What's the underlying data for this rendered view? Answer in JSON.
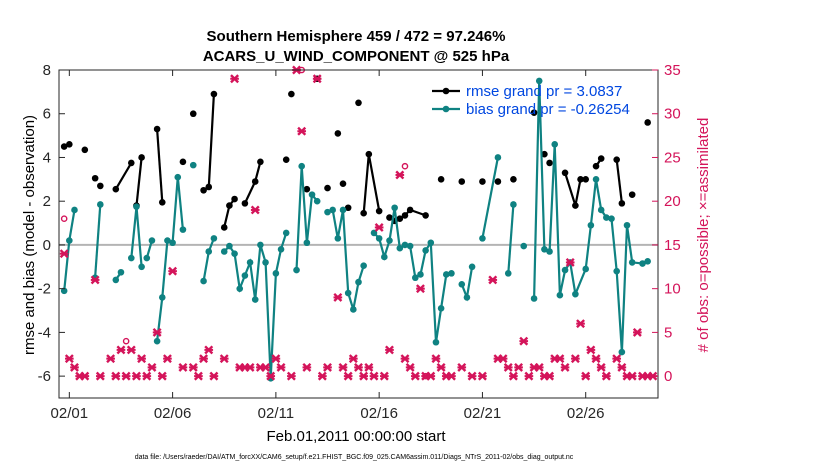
{
  "chart_data": {
    "type": "line",
    "title": "Southern Hemisphere 459 / 472 = 97.246%",
    "subtitle": "ACARS_U_WIND_COMPONENT @ 525 hPa",
    "xlabel": "Feb.01,2011 00:00:00 start",
    "ylabel": "rmse and bias (model - observation)",
    "y2label": "# of obs: o=possible; ×=assimilated",
    "footer": "data file: /Users/raeder/DAI/ATM_forcXX/CAM6_setup/f.e21.FHIST_BGC.f09_025.CAM6assim.011/Diags_NTrS_2011-02/obs_diag_output.nc",
    "xlim": [
      0.5,
      29.5
    ],
    "ylim": [
      -7,
      8
    ],
    "y2lim": [
      -2.5,
      35
    ],
    "x_ticks": [
      {
        "x": 1,
        "label": "02/01"
      },
      {
        "x": 6,
        "label": "02/06"
      },
      {
        "x": 11,
        "label": "02/11"
      },
      {
        "x": 16,
        "label": "02/16"
      },
      {
        "x": 21,
        "label": "02/21"
      },
      {
        "x": 26,
        "label": "02/26"
      }
    ],
    "y_ticks": [
      "-6",
      "-4",
      "-2",
      "0",
      "2",
      "4",
      "6",
      "8"
    ],
    "y2_ticks": [
      "0",
      "5",
      "10",
      "15",
      "20",
      "25",
      "30",
      "35"
    ],
    "colors": {
      "rmse": "#000000",
      "bias": "#0f8282",
      "obs": "#d4145a",
      "zero_line": "#b4b4b4"
    },
    "grid": false,
    "legend_position": "top-right",
    "legend": [
      {
        "name": "rmse grand pr = 3.0837",
        "color": "#0047e0"
      },
      {
        "name": "bias grand pr = -0.26254",
        "color": "#0047e0"
      }
    ],
    "series": [
      {
        "key": "rmse",
        "points": [
          [
            0.75,
            4.5
          ],
          [
            1,
            4.6
          ],
          [
            1.75,
            4.35
          ],
          [
            2.25,
            3.05
          ],
          [
            2.5,
            2.7
          ],
          [
            3.25,
            2.55
          ],
          [
            4,
            3.75
          ],
          [
            4.25,
            1.8
          ],
          [
            4.5,
            4.0
          ],
          [
            5.25,
            5.3
          ],
          [
            5.5,
            1.95
          ],
          [
            6.5,
            3.8
          ],
          [
            7,
            6.0
          ],
          [
            7.5,
            2.5
          ],
          [
            7.75,
            2.65
          ],
          [
            8,
            6.9
          ],
          [
            8.5,
            0.8
          ],
          [
            8.75,
            1.8
          ],
          [
            9,
            2.1
          ],
          [
            9.5,
            1.9
          ],
          [
            10,
            2.9
          ],
          [
            10.25,
            3.8
          ],
          [
            11.5,
            3.9
          ],
          [
            11.75,
            6.9
          ],
          [
            12.5,
            2.55
          ],
          [
            13,
            7.6
          ],
          [
            13.5,
            2.6
          ],
          [
            14,
            5.1
          ],
          [
            14.25,
            2.8
          ],
          [
            14.5,
            1.7
          ],
          [
            15,
            6.5
          ],
          [
            15.25,
            1.45
          ],
          [
            15.5,
            4.15
          ],
          [
            16,
            1.55
          ],
          [
            16.5,
            1.25
          ],
          [
            16.75,
            1.1
          ],
          [
            17,
            1.2
          ],
          [
            17.25,
            1.35
          ],
          [
            17.5,
            1.6
          ],
          [
            18.25,
            1.35
          ],
          [
            19,
            3.0
          ],
          [
            20,
            2.9
          ],
          [
            21,
            2.9
          ],
          [
            21.75,
            2.9
          ],
          [
            22.5,
            3.0
          ],
          [
            23.5,
            6.05
          ],
          [
            24,
            4.15
          ],
          [
            24.25,
            3.75
          ],
          [
            25,
            3.3
          ],
          [
            25.5,
            1.8
          ],
          [
            25.75,
            3.0
          ],
          [
            26,
            3.0
          ],
          [
            26.5,
            3.6
          ],
          [
            26.75,
            3.95
          ],
          [
            27.5,
            3.9
          ],
          [
            27.75,
            1.9
          ],
          [
            28.25,
            2.3
          ],
          [
            29,
            5.6
          ]
        ],
        "segments": [
          [
            0,
            1
          ],
          [
            5,
            6
          ],
          [
            7,
            8
          ],
          [
            9,
            10
          ],
          [
            13,
            14,
            15
          ],
          [
            16,
            17,
            18
          ],
          [
            19,
            20,
            21
          ],
          [
            31,
            32,
            33
          ],
          [
            36,
            37,
            38,
            39
          ],
          [
            48,
            49,
            50,
            51
          ],
          [
            52,
            53
          ],
          [
            54,
            55
          ]
        ]
      },
      {
        "key": "bias",
        "points": [
          [
            0.75,
            -2.1
          ],
          [
            1,
            0.2
          ],
          [
            1.25,
            1.6
          ],
          [
            2.25,
            -1.5
          ],
          [
            2.5,
            1.85
          ],
          [
            3.25,
            -1.6
          ],
          [
            3.5,
            -1.25
          ],
          [
            4,
            -0.6
          ],
          [
            4.25,
            1.75
          ],
          [
            4.5,
            -1.0
          ],
          [
            4.75,
            -0.6
          ],
          [
            5,
            0.2
          ],
          [
            5.25,
            -4.4
          ],
          [
            5.5,
            -2.4
          ],
          [
            5.75,
            0.2
          ],
          [
            6,
            0.1
          ],
          [
            6.25,
            3.1
          ],
          [
            6.5,
            0.7
          ],
          [
            7,
            3.65
          ],
          [
            7.5,
            -1.65
          ],
          [
            7.75,
            -0.3
          ],
          [
            8,
            0.3
          ],
          [
            8.5,
            -0.3
          ],
          [
            8.75,
            -0.05
          ],
          [
            9,
            -0.4
          ],
          [
            9.25,
            -2.0
          ],
          [
            9.5,
            -1.4
          ],
          [
            9.75,
            -0.8
          ],
          [
            10,
            -2.5
          ],
          [
            10.25,
            0.0
          ],
          [
            10.5,
            -0.8
          ],
          [
            10.75,
            -6.1
          ],
          [
            11,
            -1.3
          ],
          [
            11.25,
            -0.2
          ],
          [
            11.5,
            0.55
          ],
          [
            12,
            -1.15
          ],
          [
            12.25,
            3.6
          ],
          [
            12.5,
            0.1
          ],
          [
            12.75,
            2.3
          ],
          [
            13,
            2.0
          ],
          [
            13.5,
            1.5
          ],
          [
            13.75,
            1.6
          ],
          [
            14,
            0.3
          ],
          [
            14.25,
            1.6
          ],
          [
            14.5,
            -2.2
          ],
          [
            14.75,
            -2.95
          ],
          [
            15,
            -1.7
          ],
          [
            15.25,
            -0.95
          ],
          [
            15.75,
            0.55
          ],
          [
            16,
            0.3
          ],
          [
            16.25,
            -0.55
          ],
          [
            16.5,
            0.2
          ],
          [
            16.75,
            1.7
          ],
          [
            17,
            -0.15
          ],
          [
            17.25,
            0.0
          ],
          [
            17.5,
            -0.05
          ],
          [
            17.75,
            -1.5
          ],
          [
            18,
            -1.35
          ],
          [
            18.25,
            -0.25
          ],
          [
            18.5,
            0.1
          ],
          [
            18.75,
            -4.45
          ],
          [
            19,
            -2.9
          ],
          [
            19.25,
            -1.35
          ],
          [
            19.5,
            -1.3
          ],
          [
            20,
            -1.8
          ],
          [
            20.25,
            -2.4
          ],
          [
            20.5,
            -1.0
          ],
          [
            21,
            0.3
          ],
          [
            21.75,
            4.0
          ],
          [
            22.25,
            -1.3
          ],
          [
            22.5,
            1.85
          ],
          [
            23,
            -0.05
          ],
          [
            23.5,
            -2.45
          ],
          [
            23.75,
            7.5
          ],
          [
            24,
            -0.2
          ],
          [
            24.25,
            -0.3
          ],
          [
            24.5,
            4.6
          ],
          [
            24.75,
            -2.3
          ],
          [
            25,
            -1.15
          ],
          [
            25.25,
            -0.8
          ],
          [
            25.5,
            -2.25
          ],
          [
            26,
            -1.1
          ],
          [
            26.25,
            0.9
          ],
          [
            26.5,
            3.0
          ],
          [
            26.75,
            1.6
          ],
          [
            27,
            1.25
          ],
          [
            27.25,
            1.2
          ],
          [
            27.5,
            -1.2
          ],
          [
            27.75,
            -4.9
          ],
          [
            28,
            0.9
          ],
          [
            28.25,
            -0.8
          ],
          [
            28.75,
            -0.85
          ],
          [
            29,
            -0.75
          ]
        ],
        "segments": [
          [
            0,
            1,
            2
          ],
          [
            3,
            4
          ],
          [
            5,
            6
          ],
          [
            7,
            8,
            9
          ],
          [
            10,
            11
          ],
          [
            12,
            13,
            14,
            15,
            16,
            17
          ],
          [
            19,
            20,
            21
          ],
          [
            22,
            23,
            24,
            25,
            26,
            27,
            28,
            29,
            30,
            31,
            32,
            33,
            34
          ],
          [
            35,
            36,
            37,
            38,
            39
          ],
          [
            40,
            41,
            42,
            43,
            44,
            45,
            46,
            47
          ],
          [
            48,
            49,
            50,
            51,
            52,
            53,
            54,
            55,
            56,
            57,
            58,
            59,
            60,
            61,
            62,
            63
          ],
          [
            64,
            65,
            66
          ],
          [
            67,
            68
          ],
          [
            69,
            70
          ],
          [
            72,
            73,
            74,
            75,
            76,
            77,
            78,
            79,
            80,
            81,
            82,
            83,
            84,
            85,
            86,
            87,
            88,
            89,
            90,
            91,
            92
          ]
        ]
      }
    ],
    "obs_assimilated": [
      [
        0.75,
        14
      ],
      [
        1,
        2
      ],
      [
        1.25,
        1
      ],
      [
        1.5,
        0
      ],
      [
        1.75,
        0
      ],
      [
        2.25,
        11
      ],
      [
        2.5,
        0
      ],
      [
        3,
        2
      ],
      [
        3.25,
        0
      ],
      [
        3.5,
        3
      ],
      [
        3.75,
        0
      ],
      [
        4,
        3
      ],
      [
        4.25,
        0
      ],
      [
        4.5,
        2
      ],
      [
        4.75,
        0
      ],
      [
        5,
        1
      ],
      [
        5.25,
        5
      ],
      [
        5.5,
        0
      ],
      [
        5.75,
        2
      ],
      [
        6,
        12
      ],
      [
        6.5,
        1
      ],
      [
        7,
        1
      ],
      [
        7.25,
        0
      ],
      [
        7.5,
        2
      ],
      [
        7.75,
        3
      ],
      [
        8,
        0
      ],
      [
        8.5,
        2
      ],
      [
        9,
        34
      ],
      [
        9.25,
        1
      ],
      [
        9.5,
        1
      ],
      [
        9.75,
        1
      ],
      [
        10,
        19
      ],
      [
        10.25,
        1
      ],
      [
        10.5,
        1
      ],
      [
        10.75,
        0
      ],
      [
        11,
        2
      ],
      [
        11.25,
        1
      ],
      [
        11.75,
        0
      ],
      [
        12,
        35
      ],
      [
        12.25,
        28
      ],
      [
        12.5,
        1
      ],
      [
        13,
        34
      ],
      [
        13.25,
        0
      ],
      [
        13.5,
        1
      ],
      [
        14,
        9
      ],
      [
        14.25,
        1
      ],
      [
        14.5,
        0
      ],
      [
        14.75,
        2
      ],
      [
        15,
        1
      ],
      [
        15.25,
        0
      ],
      [
        15.5,
        1
      ],
      [
        15.75,
        0
      ],
      [
        16,
        17
      ],
      [
        16.25,
        0
      ],
      [
        16.5,
        3
      ],
      [
        17,
        23
      ],
      [
        17.25,
        2
      ],
      [
        17.5,
        1
      ],
      [
        17.75,
        0
      ],
      [
        18,
        10
      ],
      [
        18.25,
        0
      ],
      [
        18.5,
        0
      ],
      [
        18.75,
        2
      ],
      [
        19,
        1
      ],
      [
        19.25,
        0
      ],
      [
        19.5,
        0
      ],
      [
        20,
        1
      ],
      [
        20.5,
        0
      ],
      [
        21,
        0
      ],
      [
        21.5,
        11
      ],
      [
        21.75,
        2
      ],
      [
        22,
        2
      ],
      [
        22.25,
        1
      ],
      [
        22.5,
        0
      ],
      [
        22.75,
        1
      ],
      [
        23,
        4
      ],
      [
        23.25,
        0
      ],
      [
        23.5,
        1
      ],
      [
        23.75,
        1
      ],
      [
        24,
        0
      ],
      [
        24.25,
        0
      ],
      [
        24.5,
        2
      ],
      [
        24.75,
        2
      ],
      [
        25,
        1
      ],
      [
        25.25,
        13
      ],
      [
        25.5,
        2
      ],
      [
        25.75,
        6
      ],
      [
        26,
        0
      ],
      [
        26.25,
        3
      ],
      [
        26.5,
        2
      ],
      [
        26.75,
        1
      ],
      [
        27,
        0
      ],
      [
        27.5,
        2
      ],
      [
        27.75,
        1
      ],
      [
        28,
        0
      ],
      [
        28.25,
        0
      ],
      [
        28.5,
        5
      ],
      [
        28.75,
        0
      ],
      [
        29,
        0
      ],
      [
        29.25,
        0
      ]
    ],
    "obs_possible": [
      [
        0.75,
        18
      ],
      [
        3.75,
        4
      ],
      [
        12.25,
        35
      ],
      [
        17.25,
        24
      ],
      [
        18.25,
        0
      ]
    ]
  }
}
